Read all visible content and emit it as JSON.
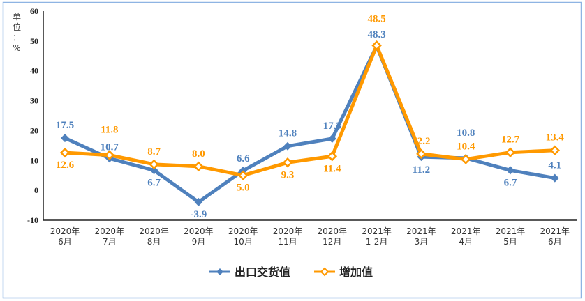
{
  "chart_data": {
    "type": "line",
    "title": "",
    "unit_label": [
      "单",
      "位",
      "：",
      "%"
    ],
    "ylim": [
      -10,
      60
    ],
    "yticks": [
      -10,
      0,
      10,
      20,
      30,
      40,
      50,
      60
    ],
    "grid": false,
    "legend_position": "bottom",
    "categories": [
      [
        "2020年",
        "6月"
      ],
      [
        "2020年",
        "7月"
      ],
      [
        "2020年",
        "8月"
      ],
      [
        "2020年",
        "9月"
      ],
      [
        "2020年",
        "10月"
      ],
      [
        "2020年",
        "11月"
      ],
      [
        "2020年",
        "12月"
      ],
      [
        "2021年",
        "1-2月"
      ],
      [
        "2021年",
        "3月"
      ],
      [
        "2021年",
        "4月"
      ],
      [
        "2021年",
        "5月"
      ],
      [
        "2021年",
        "6月"
      ]
    ],
    "series": [
      {
        "name": "出口交货值",
        "color": "#4F81BD",
        "marker": "filled-diamond",
        "values": [
          17.5,
          10.7,
          6.7,
          -3.9,
          6.6,
          14.8,
          17.3,
          48.3,
          11.2,
          10.8,
          6.7,
          4.1
        ],
        "labels": [
          "17.5",
          "10.7",
          "6.7",
          "-3.9",
          "6.6",
          "14.8",
          "17.3",
          "48.3",
          "11.2",
          "10.8",
          "6.7",
          "4.1"
        ]
      },
      {
        "name": "增加值",
        "color": "#FF9900",
        "marker": "hollow-diamond",
        "values": [
          12.6,
          11.8,
          8.7,
          8.0,
          5.0,
          9.3,
          11.4,
          48.5,
          12.2,
          10.4,
          12.7,
          13.4
        ],
        "labels": [
          "12.6",
          "11.8",
          "8.7",
          "8.0",
          "5.0",
          "9.3",
          "11.4",
          "48.5",
          "12.2",
          "10.4",
          "12.7",
          "13.4"
        ]
      }
    ]
  }
}
